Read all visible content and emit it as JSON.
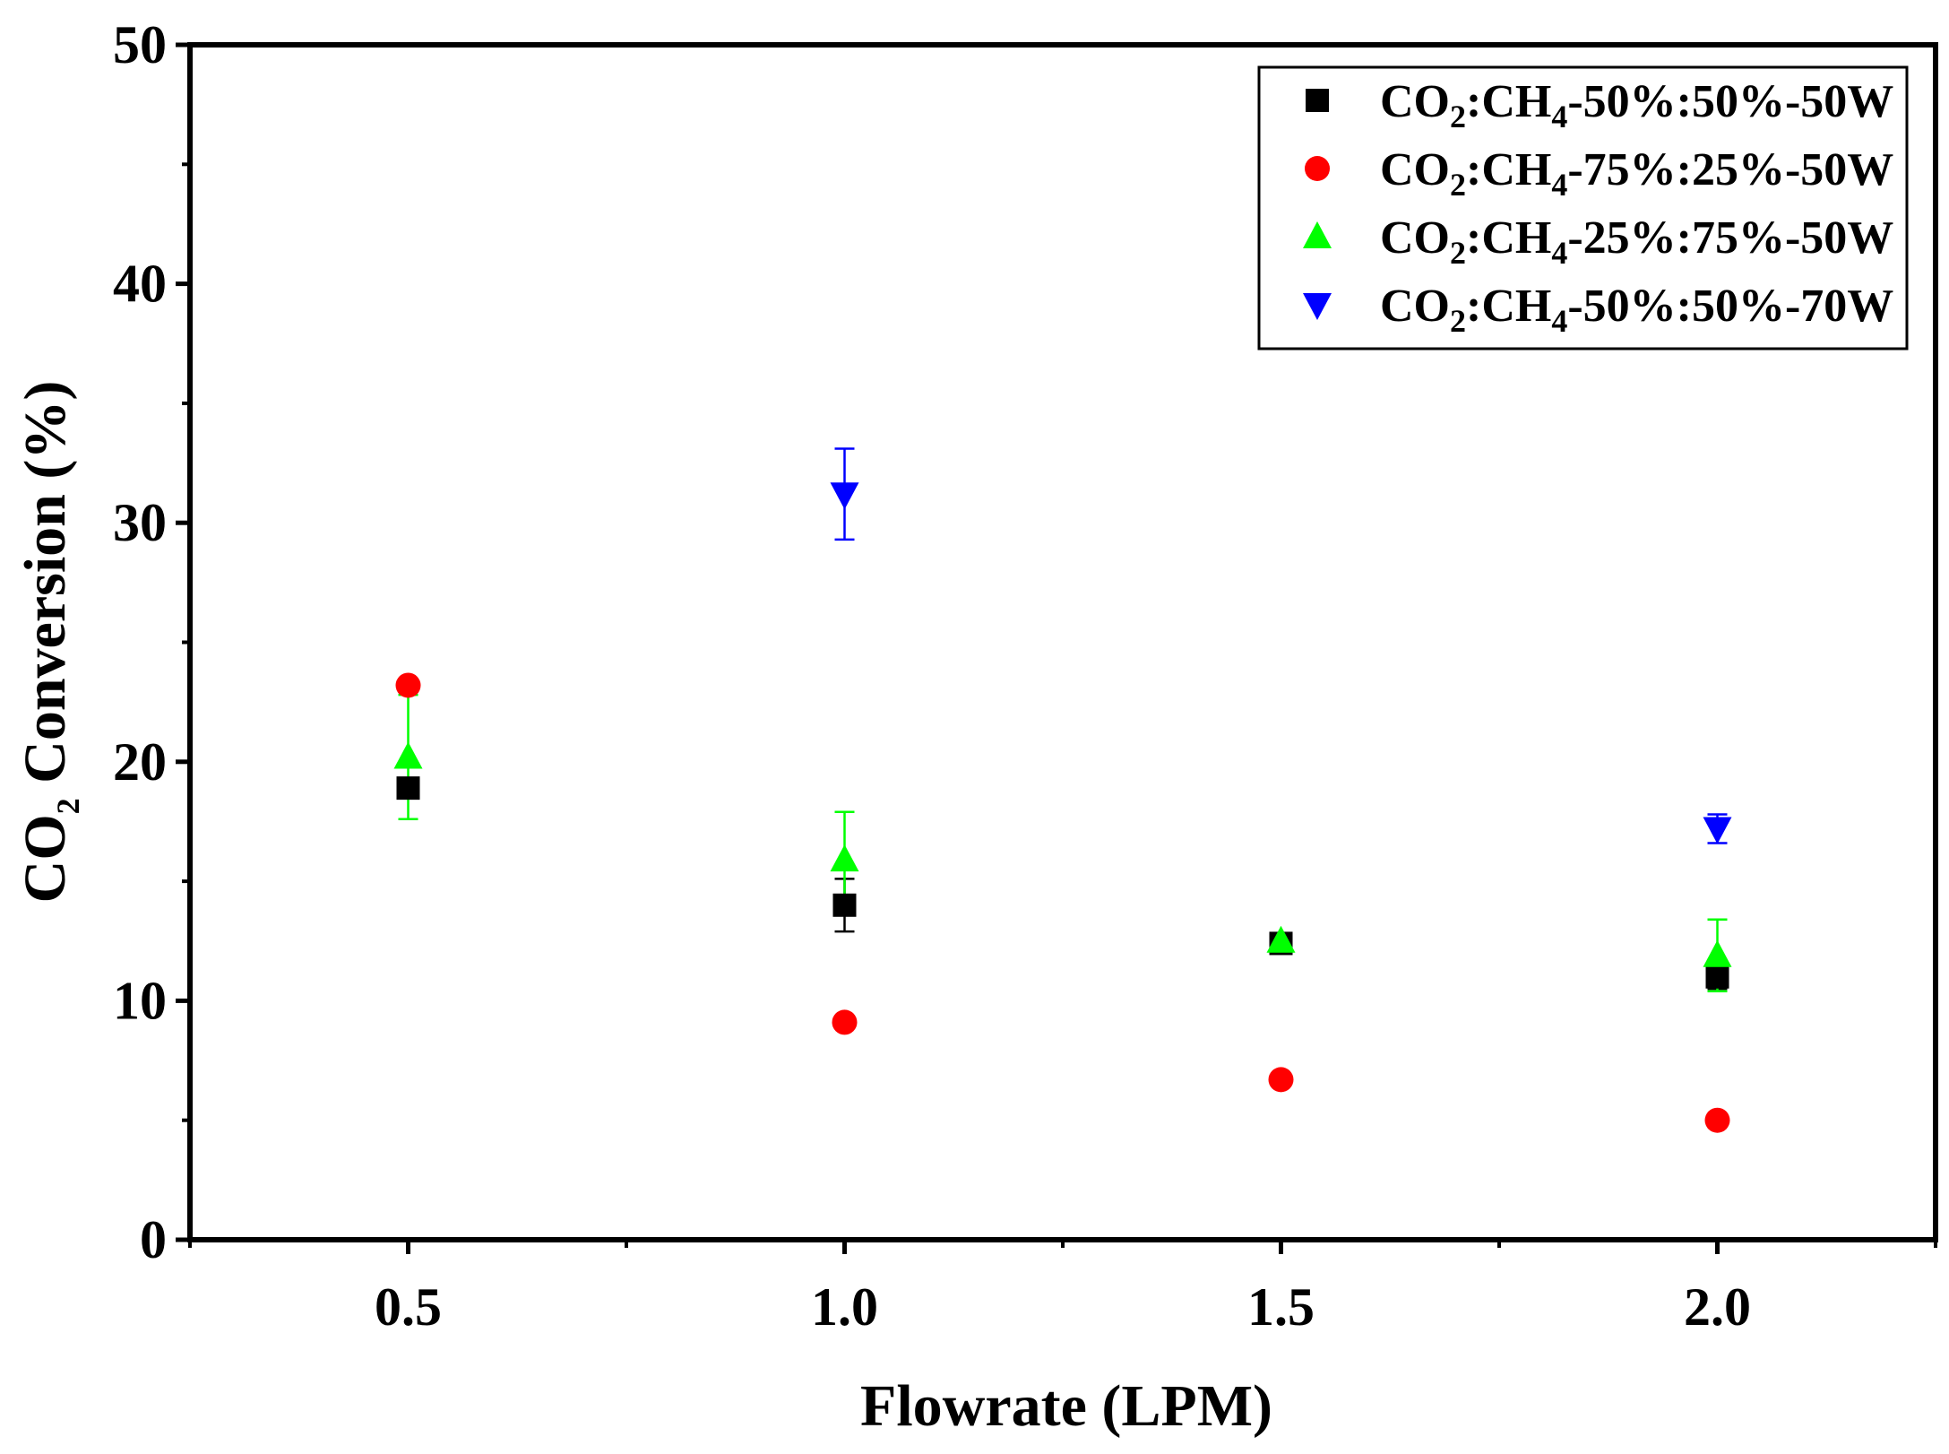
{
  "chart_data": {
    "type": "scatter",
    "xlabel": "Flowrate (LPM)",
    "ylabel": {
      "prefix": "CO",
      "sub": "2",
      "rest": " Conversion (%)"
    },
    "xlim": [
      0.25,
      2.25
    ],
    "ylim": [
      0,
      50
    ],
    "x_ticks": [
      "0.5",
      "1.0",
      "1.5",
      "2.0"
    ],
    "x_tick_values": [
      0.5,
      1.0,
      1.5,
      2.0
    ],
    "y_ticks": [
      "0",
      "10",
      "20",
      "30",
      "40",
      "50"
    ],
    "y_tick_values": [
      0,
      10,
      20,
      30,
      40,
      50
    ],
    "grid": false,
    "legend_position": "top-right",
    "series": [
      {
        "name": "CO2:CH4-50%:50%-50W",
        "label": {
          "a": "CO",
          "s1": "2",
          "b": ":CH",
          "s2": "4",
          "c": "-50%:50%-50W"
        },
        "marker": "square",
        "color": "#000000",
        "x": [
          0.5,
          1.0,
          1.5,
          2.0
        ],
        "y": [
          18.9,
          14.0,
          12.4,
          11.0
        ],
        "err": [
          0.3,
          1.1,
          0.3,
          0.5
        ]
      },
      {
        "name": "CO2:CH4-75%:25%-50W",
        "label": {
          "a": "CO",
          "s1": "2",
          "b": ":CH",
          "s2": "4",
          "c": "-75%:25%-50W"
        },
        "marker": "circle",
        "color": "#ff0000",
        "x": [
          0.5,
          1.0,
          1.5,
          2.0
        ],
        "y": [
          23.2,
          9.1,
          6.7,
          5.0
        ],
        "err": [
          0.2,
          0.1,
          0.1,
          0.1
        ]
      },
      {
        "name": "CO2:CH4-25%:75%-50W",
        "label": {
          "a": "CO",
          "s1": "2",
          "b": ":CH",
          "s2": "4",
          "c": "-25%:75%-50W"
        },
        "marker": "triangle-up",
        "color": "#00ff00",
        "x": [
          0.5,
          1.0,
          1.5,
          2.0
        ],
        "y": [
          20.2,
          15.9,
          12.5,
          11.9
        ],
        "err": [
          2.6,
          2.0,
          0.2,
          1.5
        ]
      },
      {
        "name": "CO2:CH4-50%:50%-70W",
        "label": {
          "a": "CO",
          "s1": "2",
          "b": ":CH",
          "s2": "4",
          "c": "-50%:50%-70W"
        },
        "marker": "triangle-down",
        "color": "#0000ff",
        "x": [
          1.0,
          2.0
        ],
        "y": [
          31.2,
          17.2
        ],
        "err": [
          1.9,
          0.6
        ]
      }
    ]
  }
}
